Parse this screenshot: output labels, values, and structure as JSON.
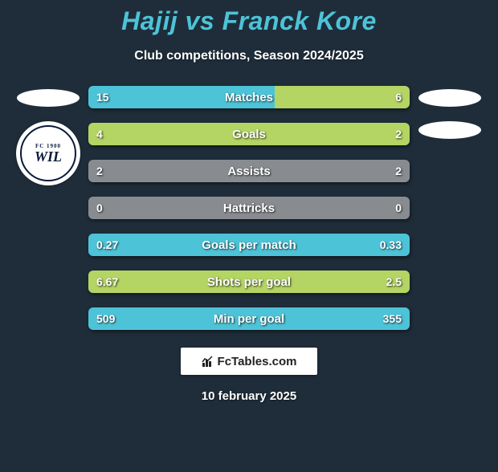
{
  "title": "Hajij vs Franck Kore",
  "subtitle": "Club competitions, Season 2024/2025",
  "date": "10 february 2025",
  "branding_text": "FcTables.com",
  "club_logo": {
    "top_text": "FC 1900",
    "main_text": "WIL"
  },
  "colors": {
    "background": "#1f2d3a",
    "title": "#4dc3d8",
    "left_bar": "#4dc3d8",
    "right_bar": "#b4d464",
    "neutral_bar": "#888c90",
    "text": "#ffffff",
    "branding_bg": "#ffffff",
    "branding_text": "#222222"
  },
  "stats": [
    {
      "label": "Matches",
      "left_val": "15",
      "right_val": "6",
      "left_pct": 58,
      "right_pct": 42,
      "left_color": "#4dc3d8",
      "right_color": "#b4d464"
    },
    {
      "label": "Goals",
      "left_val": "4",
      "right_val": "2",
      "left_pct": 100,
      "right_pct": 0,
      "left_color": "#b4d464",
      "right_color": "#b4d464"
    },
    {
      "label": "Assists",
      "left_val": "2",
      "right_val": "2",
      "left_pct": 100,
      "right_pct": 0,
      "left_color": "#888c90",
      "right_color": "#888c90"
    },
    {
      "label": "Hattricks",
      "left_val": "0",
      "right_val": "0",
      "left_pct": 100,
      "right_pct": 0,
      "left_color": "#888c90",
      "right_color": "#888c90"
    },
    {
      "label": "Goals per match",
      "left_val": "0.27",
      "right_val": "0.33",
      "left_pct": 100,
      "right_pct": 0,
      "left_color": "#4dc3d8",
      "right_color": "#4dc3d8"
    },
    {
      "label": "Shots per goal",
      "left_val": "6.67",
      "right_val": "2.5",
      "left_pct": 100,
      "right_pct": 0,
      "left_color": "#b4d464",
      "right_color": "#b4d464"
    },
    {
      "label": "Min per goal",
      "left_val": "509",
      "right_val": "355",
      "left_pct": 100,
      "right_pct": 0,
      "left_color": "#4dc3d8",
      "right_color": "#4dc3d8"
    }
  ]
}
